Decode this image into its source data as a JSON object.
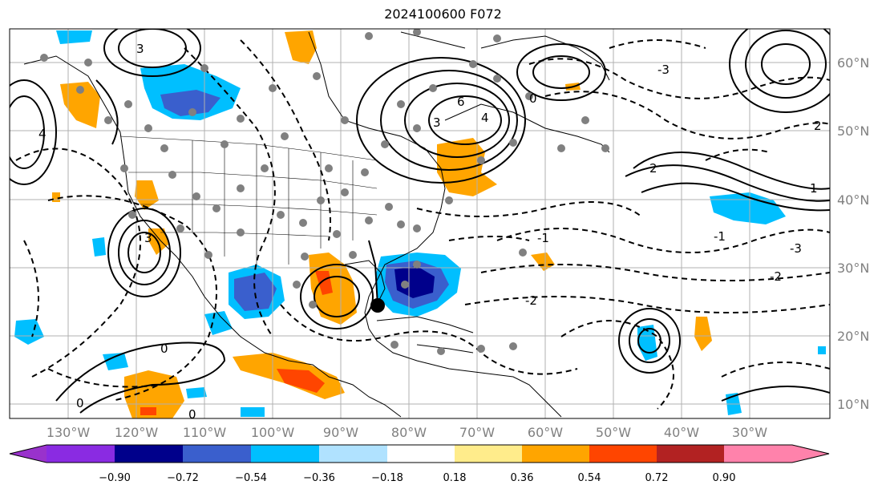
{
  "title": "2024100600 F072",
  "map": {
    "lon_labels": [
      "130°W",
      "120°W",
      "110°W",
      "100°W",
      "90°W",
      "80°W",
      "70°W",
      "60°W",
      "50°W",
      "40°W",
      "30°W"
    ],
    "lat_labels": [
      "60°N",
      "50°N",
      "40°N",
      "30°N",
      "20°N",
      "10°N"
    ],
    "contour_labels": [
      "-3",
      "-2",
      "-1",
      "0",
      "1",
      "2",
      "3",
      "4",
      "6"
    ]
  },
  "colorbar": {
    "colors": [
      "#9932cc",
      "#8a2be2",
      "#00008b",
      "#3a5fcd",
      "#00bfff",
      "#b0e2ff",
      "#ffffff",
      "#ffec8b",
      "#ffa500",
      "#ff4500",
      "#b22222",
      "#ff82ab",
      "#ff82ab"
    ],
    "tick_labels": [
      "−0.90",
      "−0.72",
      "−0.54",
      "−0.36",
      "−0.18",
      "0.18",
      "0.36",
      "0.54",
      "0.72",
      "0.90"
    ]
  },
  "colors": {
    "grid": "#b0b0b0",
    "coast": "#000000",
    "marker_grey": "#808080"
  }
}
